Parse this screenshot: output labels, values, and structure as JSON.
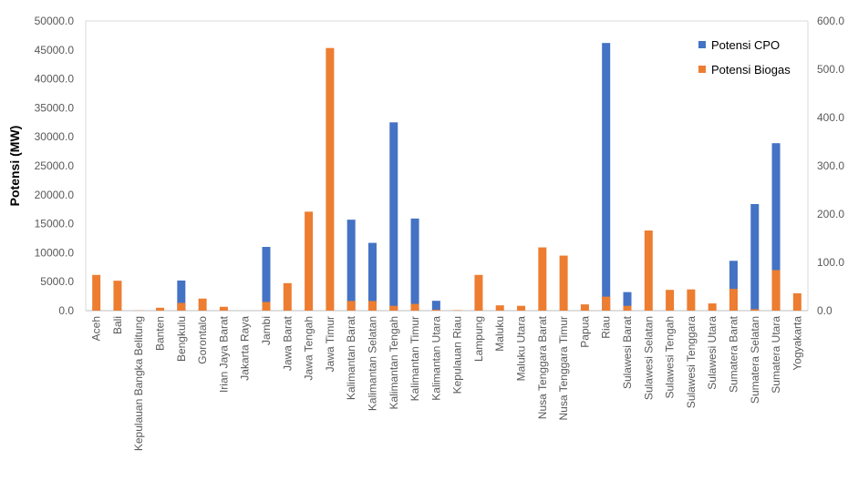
{
  "chart_data": {
    "type": "bar",
    "ylabel": "Potensi (MW)",
    "ylim": [
      0,
      50000
    ],
    "y2lim": [
      0,
      600
    ],
    "y_ticks": [
      "0.0",
      "5000.0",
      "10000.0",
      "15000.0",
      "20000.0",
      "25000.0",
      "30000.0",
      "35000.0",
      "40000.0",
      "45000.0",
      "50000.0"
    ],
    "y2_ticks": [
      "0.0",
      "100.0",
      "200.0",
      "300.0",
      "400.0",
      "500.0",
      "600.0"
    ],
    "legend_position": "top-right",
    "categories": [
      "Aceh",
      "Bali",
      "Kepulauan Bangka Belitung",
      "Banten",
      "Bengkulu",
      "Gorontalo",
      "Irian Jaya Barat",
      "Jakarta Raya",
      "Jambi",
      "Jawa Barat",
      "Jawa Tengah",
      "Jawa Timur",
      "Kalimantan Barat",
      "Kalimantan Selatan",
      "Kalimantan Tengah",
      "Kalimantan Timur",
      "Kalimantan Utara",
      "Kepulauan Riau",
      "Lampung",
      "Maluku",
      "Maluku Utara",
      "Nusa Tenggara Barat",
      "Nusa Tenggara Timur",
      "Papua",
      "Riau",
      "Sulawesi Barat",
      "Sulawesi Selatan",
      "Sulawesi Tengah",
      "Sulawesi Tenggara",
      "Sulawesi Utara",
      "Sumatera Barat",
      "Sumatera Selatan",
      "Sumatera Utara",
      "Yogyakarta"
    ],
    "series": [
      {
        "name": "Potensi CPO",
        "axis": "left",
        "color": "#4472C4",
        "values": [
          0,
          0,
          0,
          0,
          5200,
          0,
          0,
          0,
          11000,
          0,
          0,
          0,
          15700,
          11700,
          32500,
          15900,
          1700,
          0,
          0,
          0,
          0,
          0,
          0,
          0,
          46200,
          3200,
          0,
          0,
          0,
          0,
          8600,
          18400,
          28900,
          0
        ]
      },
      {
        "name": "Potensi Biogas",
        "axis": "right",
        "color": "#ED7D31",
        "values": [
          74,
          62,
          0.5,
          6,
          16,
          25,
          8,
          0,
          18,
          57,
          205,
          544,
          20,
          20,
          10,
          14,
          2,
          1,
          74,
          11,
          10,
          131,
          114,
          13,
          29,
          10,
          166,
          43,
          44,
          15,
          45,
          3,
          84,
          36
        ]
      }
    ]
  }
}
